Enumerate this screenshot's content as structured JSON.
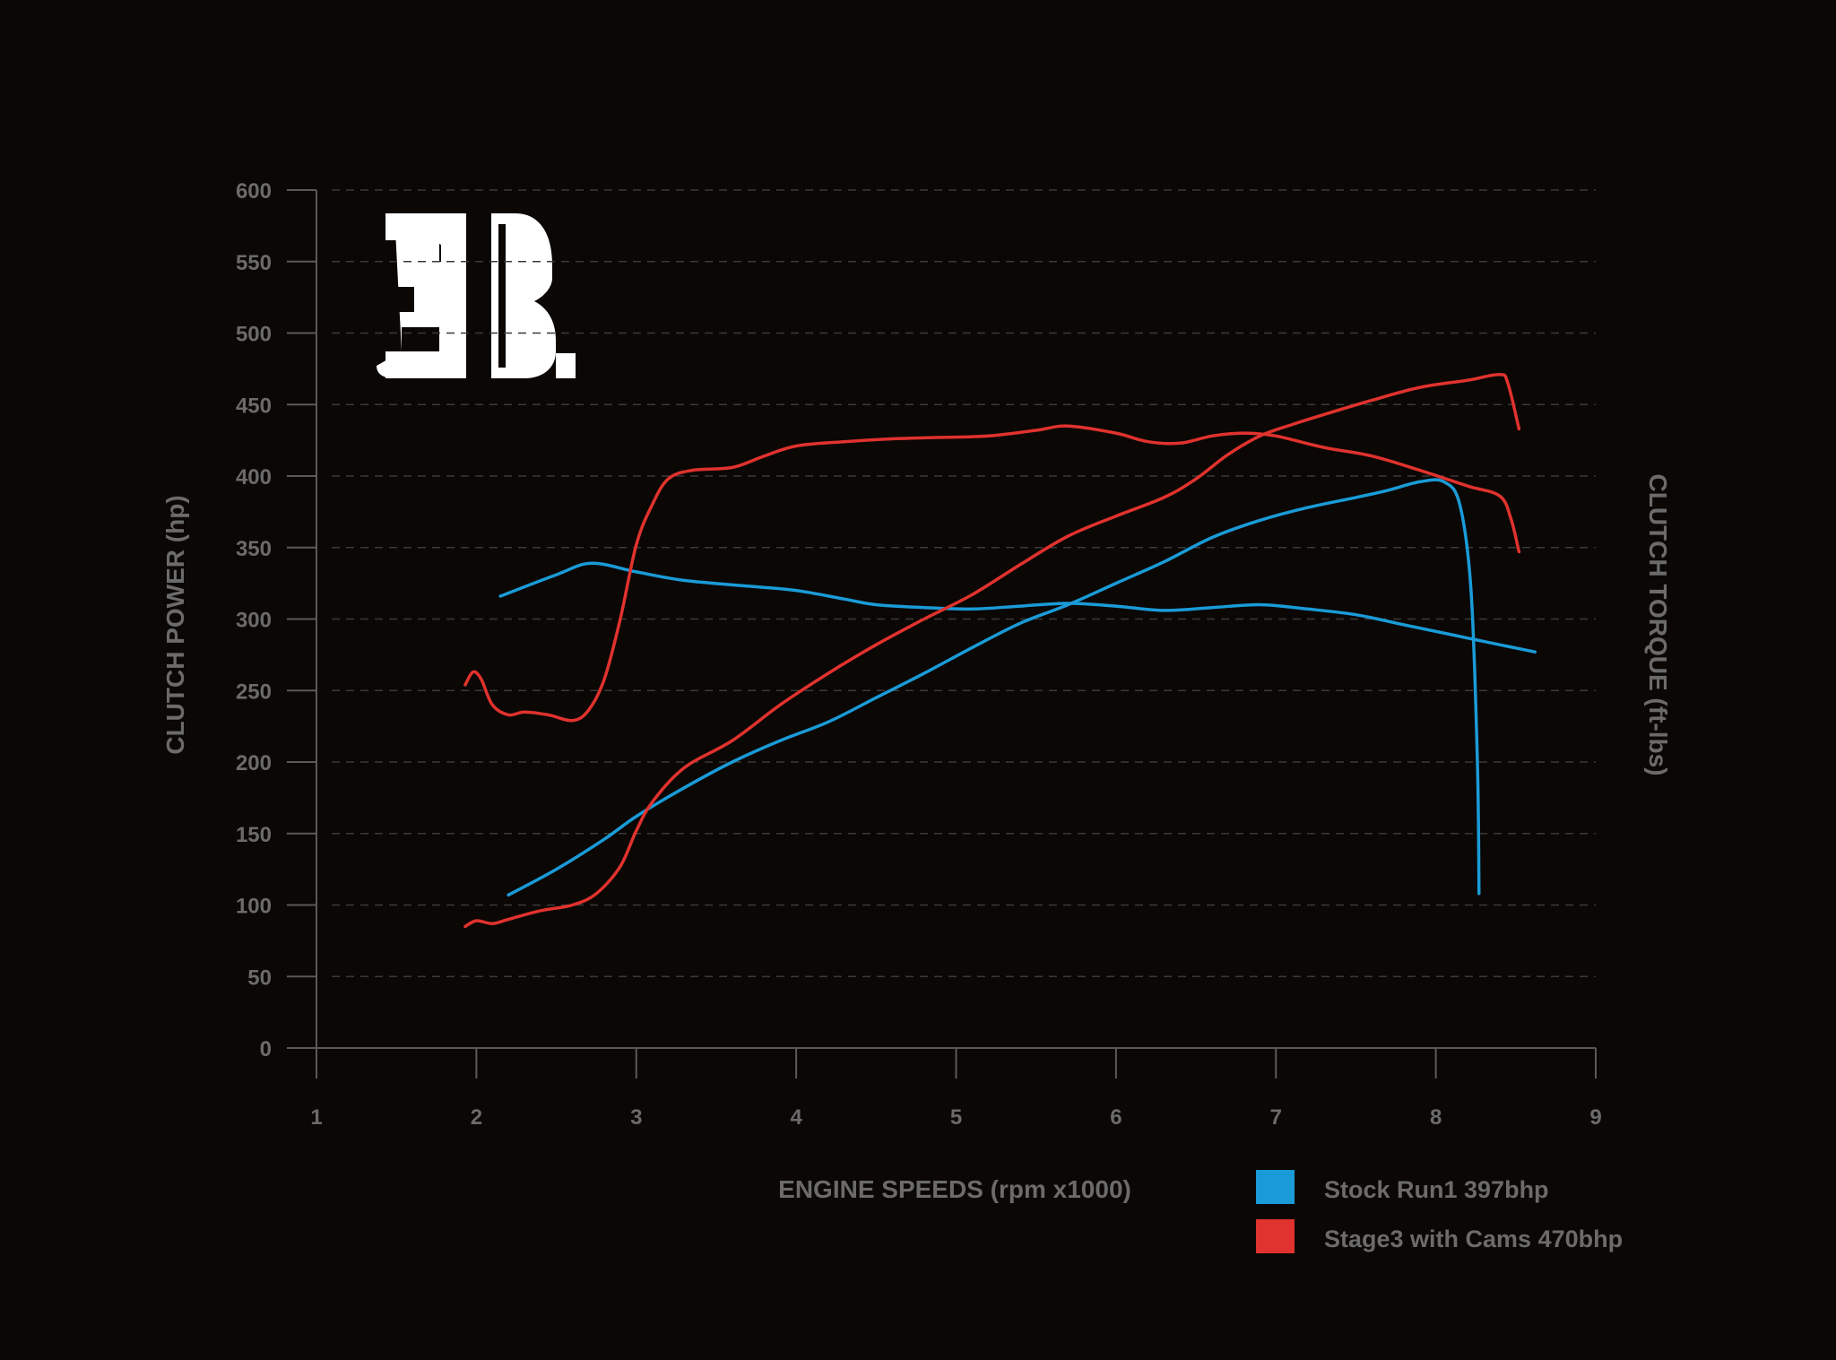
{
  "chart_data": {
    "type": "line",
    "xlabel": "ENGINE SPEEDS (rpm x1000)",
    "ylabel": "CLUTCH POWER (hp)",
    "y2label": "CLUTCH TORQUE (ft-lbs)",
    "xlim": [
      1,
      9
    ],
    "ylim": [
      0,
      600
    ],
    "x_ticks": [
      "1",
      "2",
      "3",
      "4",
      "5",
      "6",
      "7",
      "8",
      "9"
    ],
    "y_ticks": [
      "0",
      "50",
      "100",
      "150",
      "200",
      "250",
      "300",
      "350",
      "400",
      "450",
      "500",
      "550",
      "600"
    ],
    "grid": true,
    "legend_position": "bottom-right",
    "logo": "3B",
    "colors": {
      "stock": "#1a9bd7",
      "stage3": "#e0322e",
      "background": "#0a0704"
    },
    "series": [
      {
        "name": "Stock Run1 397bhp",
        "color": "#1a9bd7",
        "curves": [
          {
            "measure": "power",
            "points": [
              [
                2.2,
                107
              ],
              [
                2.5,
                125
              ],
              [
                2.8,
                146
              ],
              [
                3.0,
                162
              ],
              [
                3.3,
                182
              ],
              [
                3.6,
                200
              ],
              [
                3.9,
                215
              ],
              [
                4.2,
                228
              ],
              [
                4.5,
                245
              ],
              [
                4.8,
                262
              ],
              [
                5.1,
                280
              ],
              [
                5.4,
                297
              ],
              [
                5.7,
                310
              ],
              [
                6.0,
                325
              ],
              [
                6.3,
                340
              ],
              [
                6.6,
                357
              ],
              [
                6.9,
                369
              ],
              [
                7.2,
                378
              ],
              [
                7.5,
                385
              ],
              [
                7.7,
                390
              ],
              [
                7.9,
                396
              ],
              [
                8.05,
                396
              ],
              [
                8.15,
                380
              ],
              [
                8.22,
                320
              ],
              [
                8.26,
                200
              ],
              [
                8.27,
                108
              ]
            ]
          },
          {
            "measure": "torque",
            "points": [
              [
                2.15,
                316
              ],
              [
                2.5,
                331
              ],
              [
                2.72,
                339
              ],
              [
                3.0,
                333
              ],
              [
                3.3,
                327
              ],
              [
                3.7,
                323
              ],
              [
                4.0,
                320
              ],
              [
                4.3,
                314
              ],
              [
                4.5,
                310
              ],
              [
                4.8,
                308
              ],
              [
                5.1,
                307
              ],
              [
                5.4,
                309
              ],
              [
                5.7,
                311
              ],
              [
                6.0,
                309
              ],
              [
                6.3,
                306
              ],
              [
                6.6,
                308
              ],
              [
                6.9,
                310
              ],
              [
                7.2,
                307
              ],
              [
                7.5,
                303
              ],
              [
                7.8,
                296
              ],
              [
                8.1,
                289
              ],
              [
                8.4,
                282
              ],
              [
                8.62,
                277
              ]
            ]
          }
        ]
      },
      {
        "name": "Stage3 with Cams 470bhp",
        "color": "#e0322e",
        "curves": [
          {
            "measure": "power",
            "points": [
              [
                1.93,
                85
              ],
              [
                2.0,
                89
              ],
              [
                2.1,
                87
              ],
              [
                2.2,
                90
              ],
              [
                2.4,
                96
              ],
              [
                2.6,
                100
              ],
              [
                2.75,
                108
              ],
              [
                2.9,
                127
              ],
              [
                3.0,
                152
              ],
              [
                3.1,
                172
              ],
              [
                3.3,
                196
              ],
              [
                3.6,
                215
              ],
              [
                3.9,
                240
              ],
              [
                4.2,
                262
              ],
              [
                4.5,
                282
              ],
              [
                4.8,
                300
              ],
              [
                5.1,
                317
              ],
              [
                5.4,
                338
              ],
              [
                5.7,
                358
              ],
              [
                6.0,
                372
              ],
              [
                6.3,
                385
              ],
              [
                6.5,
                398
              ],
              [
                6.7,
                415
              ],
              [
                6.9,
                428
              ],
              [
                7.1,
                436
              ],
              [
                7.3,
                443
              ],
              [
                7.6,
                453
              ],
              [
                7.9,
                462
              ],
              [
                8.2,
                467
              ],
              [
                8.4,
                471
              ],
              [
                8.45,
                465
              ],
              [
                8.52,
                433
              ]
            ]
          },
          {
            "measure": "torque",
            "points": [
              [
                1.93,
                254
              ],
              [
                1.98,
                263
              ],
              [
                2.03,
                258
              ],
              [
                2.1,
                240
              ],
              [
                2.2,
                233
              ],
              [
                2.3,
                235
              ],
              [
                2.45,
                233
              ],
              [
                2.6,
                229
              ],
              [
                2.7,
                236
              ],
              [
                2.8,
                258
              ],
              [
                2.9,
                300
              ],
              [
                3.0,
                352
              ],
              [
                3.1,
                380
              ],
              [
                3.2,
                398
              ],
              [
                3.35,
                404
              ],
              [
                3.6,
                406
              ],
              [
                3.8,
                414
              ],
              [
                4.0,
                421
              ],
              [
                4.3,
                424
              ],
              [
                4.6,
                426
              ],
              [
                4.9,
                427
              ],
              [
                5.2,
                428
              ],
              [
                5.5,
                432
              ],
              [
                5.7,
                435
              ],
              [
                6.0,
                430
              ],
              [
                6.2,
                424
              ],
              [
                6.4,
                423
              ],
              [
                6.6,
                428
              ],
              [
                6.8,
                430
              ],
              [
                7.0,
                428
              ],
              [
                7.3,
                420
              ],
              [
                7.6,
                414
              ],
              [
                7.9,
                404
              ],
              [
                8.2,
                393
              ],
              [
                8.4,
                386
              ],
              [
                8.47,
                370
              ],
              [
                8.52,
                347
              ]
            ]
          }
        ]
      }
    ]
  }
}
